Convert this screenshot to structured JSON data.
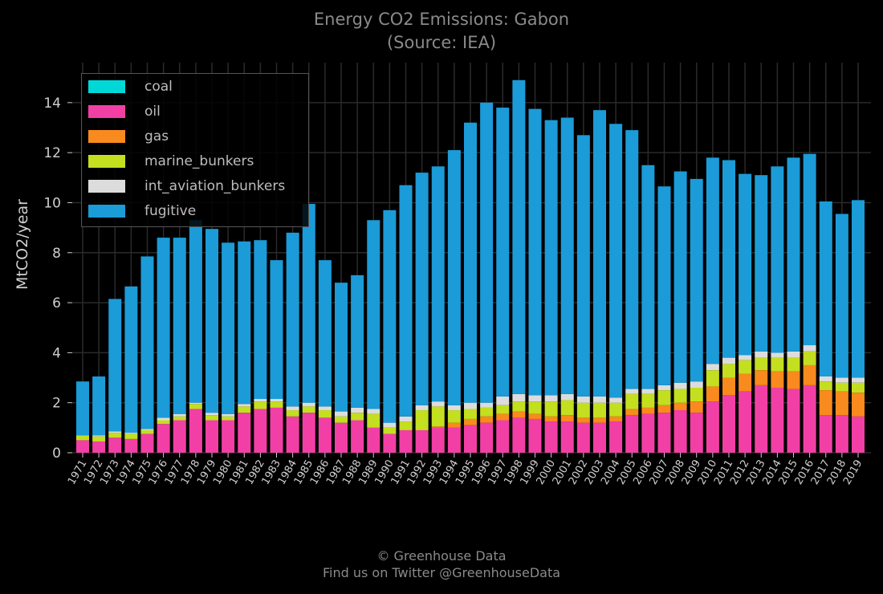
{
  "header": {
    "title": "Energy CO2 Emissions: Gabon",
    "subtitle": "(Source: IEA)"
  },
  "footer": {
    "line1": "© Greenhouse Data",
    "line2": "Find us on Twitter @GreenhouseData"
  },
  "legend": {
    "placement": "top-left",
    "items": [
      {
        "label": "coal",
        "color": "#00d8d8"
      },
      {
        "label": "oil",
        "color": "#f23fa5"
      },
      {
        "label": "gas",
        "color": "#f98a1d"
      },
      {
        "label": "marine_bunkers",
        "color": "#c3df1f"
      },
      {
        "label": "int_aviation_bunkers",
        "color": "#dcdcdc"
      },
      {
        "label": "fugitive",
        "color": "#1b9bd7"
      }
    ]
  },
  "chart_data": {
    "type": "bar",
    "stacked": true,
    "title": "Energy CO2 Emissions: Gabon",
    "subtitle": "(Source: IEA)",
    "xlabel": "",
    "ylabel": "MtCO2/year",
    "ylim": [
      0,
      15.6
    ],
    "yticks": [
      0,
      2,
      4,
      6,
      8,
      10,
      12,
      14
    ],
    "grid": true,
    "legend_placement": "top-left",
    "categories": [
      "1971",
      "1972",
      "1973",
      "1974",
      "1975",
      "1976",
      "1977",
      "1978",
      "1979",
      "1980",
      "1981",
      "1982",
      "1983",
      "1984",
      "1985",
      "1986",
      "1987",
      "1988",
      "1989",
      "1990",
      "1991",
      "1992",
      "1993",
      "1994",
      "1995",
      "1996",
      "1997",
      "1998",
      "1999",
      "2000",
      "2001",
      "2002",
      "2003",
      "2004",
      "2005",
      "2006",
      "2007",
      "2008",
      "2009",
      "2010",
      "2011",
      "2012",
      "2013",
      "2014",
      "2015",
      "2016",
      "2017",
      "2018",
      "2019"
    ],
    "series": [
      {
        "name": "coal",
        "color": "#00d8d8",
        "values": [
          0,
          0,
          0,
          0,
          0,
          0,
          0,
          0,
          0,
          0,
          0,
          0,
          0,
          0,
          0,
          0,
          0,
          0,
          0,
          0,
          0,
          0,
          0,
          0,
          0,
          0,
          0,
          0,
          0,
          0,
          0,
          0,
          0,
          0,
          0,
          0,
          0,
          0,
          0,
          0,
          0,
          0,
          0,
          0,
          0,
          0,
          0,
          0,
          0
        ]
      },
      {
        "name": "oil",
        "color": "#f23fa5",
        "values": [
          0.5,
          0.45,
          0.6,
          0.55,
          0.75,
          1.15,
          1.3,
          1.75,
          1.3,
          1.3,
          1.6,
          1.75,
          1.8,
          1.45,
          1.6,
          1.4,
          1.2,
          1.3,
          1.0,
          0.75,
          0.9,
          0.9,
          1.0,
          1.0,
          1.1,
          1.2,
          1.3,
          1.4,
          1.35,
          1.25,
          1.25,
          1.2,
          1.2,
          1.25,
          1.5,
          1.55,
          1.6,
          1.7,
          1.6,
          2.05,
          2.3,
          2.45,
          2.7,
          2.6,
          2.55,
          2.7,
          1.5,
          1.5,
          1.45
        ]
      },
      {
        "name": "gas",
        "color": "#f98a1d",
        "values": [
          0,
          0,
          0,
          0,
          0,
          0,
          0,
          0,
          0,
          0,
          0,
          0,
          0,
          0,
          0,
          0,
          0,
          0,
          0,
          0,
          0,
          0,
          0.05,
          0.2,
          0.25,
          0.25,
          0.25,
          0.25,
          0.2,
          0.2,
          0.25,
          0.2,
          0.2,
          0.2,
          0.25,
          0.25,
          0.3,
          0.3,
          0.45,
          0.6,
          0.7,
          0.7,
          0.6,
          0.65,
          0.7,
          0.8,
          1.0,
          0.95,
          0.95
        ]
      },
      {
        "name": "marine_bunkers",
        "color": "#c3df1f",
        "values": [
          0.2,
          0.2,
          0.2,
          0.2,
          0.15,
          0.15,
          0.15,
          0.2,
          0.2,
          0.15,
          0.25,
          0.3,
          0.25,
          0.25,
          0.25,
          0.3,
          0.25,
          0.3,
          0.55,
          0.25,
          0.35,
          0.8,
          0.8,
          0.5,
          0.4,
          0.35,
          0.35,
          0.4,
          0.5,
          0.6,
          0.6,
          0.6,
          0.6,
          0.55,
          0.6,
          0.55,
          0.6,
          0.55,
          0.55,
          0.65,
          0.55,
          0.55,
          0.5,
          0.55,
          0.55,
          0.55,
          0.35,
          0.35,
          0.4
        ]
      },
      {
        "name": "int_aviation_bunkers",
        "color": "#dcdcdc",
        "values": [
          0,
          0.05,
          0.05,
          0.05,
          0.05,
          0.1,
          0.1,
          0.05,
          0.1,
          0.1,
          0.1,
          0.1,
          0.1,
          0.15,
          0.15,
          0.15,
          0.2,
          0.2,
          0.2,
          0.2,
          0.2,
          0.2,
          0.2,
          0.2,
          0.25,
          0.2,
          0.35,
          0.3,
          0.25,
          0.25,
          0.25,
          0.25,
          0.25,
          0.2,
          0.2,
          0.2,
          0.2,
          0.25,
          0.25,
          0.25,
          0.25,
          0.2,
          0.25,
          0.2,
          0.25,
          0.25,
          0.2,
          0.2,
          0.2
        ]
      },
      {
        "name": "fugitive",
        "color": "#1b9bd7",
        "values": [
          2.15,
          2.35,
          5.3,
          5.85,
          6.9,
          7.2,
          7.05,
          7.3,
          7.35,
          6.85,
          6.5,
          6.35,
          5.55,
          6.95,
          7.95,
          5.85,
          5.15,
          5.3,
          7.55,
          8.5,
          9.25,
          9.3,
          9.4,
          10.2,
          11.2,
          12.0,
          11.55,
          12.55,
          11.45,
          11.0,
          11.05,
          10.45,
          11.45,
          10.95,
          10.35,
          8.95,
          7.95,
          8.45,
          8.1,
          8.25,
          7.9,
          7.25,
          7.05,
          7.45,
          7.75,
          7.65,
          7.0,
          6.55,
          7.1
        ]
      }
    ]
  }
}
